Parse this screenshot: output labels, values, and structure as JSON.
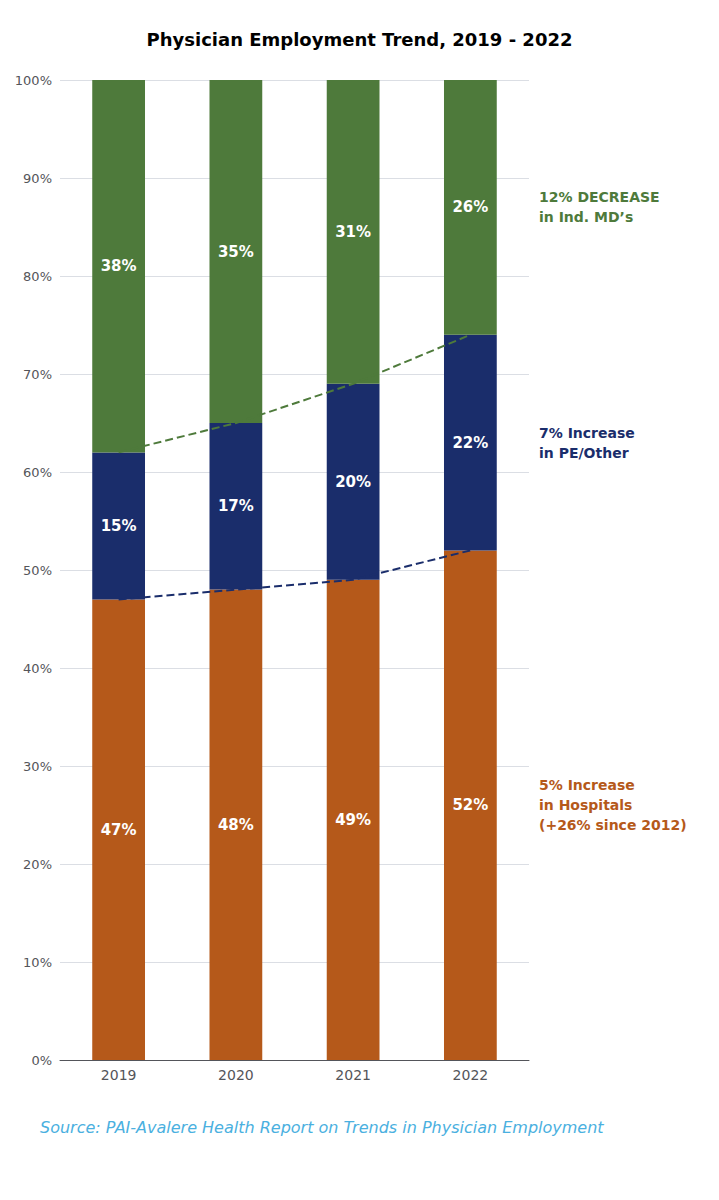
{
  "chart_data": {
    "type": "bar",
    "title": "Physician Employment Trend, 2019 - 2022",
    "stacked": true,
    "grid": true,
    "categories": [
      "2019",
      "2020",
      "2021",
      "2022"
    ],
    "series": [
      {
        "type": "bar",
        "color": "#b5591a",
        "values": [
          47,
          48,
          49,
          52
        ],
        "value_labels": [
          "47%",
          "48%",
          "49%",
          "52%"
        ],
        "data_labels": true
      },
      {
        "type": "bar",
        "color": "#1a2d6b",
        "values": [
          15,
          17,
          20,
          22
        ],
        "value_labels": [
          "15%",
          "17%",
          "20%",
          "22%"
        ],
        "data_labels": true
      },
      {
        "type": "bar",
        "color": "#4e7a3b",
        "values": [
          38,
          35,
          31,
          26
        ],
        "value_labels": [
          "38%",
          "35%",
          "31%",
          "26%"
        ],
        "data_labels": true
      },
      {
        "type": "line",
        "color": "#1a2d6b",
        "values": [
          47,
          48,
          49,
          52
        ],
        "line_style": "dashed",
        "marker": "none"
      },
      {
        "type": "line",
        "color": "#4e7a3b",
        "values": [
          62,
          65,
          69,
          74
        ],
        "line_style": "dashed",
        "marker": "none"
      }
    ],
    "ylim": [
      0,
      100
    ],
    "yticks": [
      {
        "value": 0,
        "label": "0%"
      },
      {
        "value": 10,
        "label": "10%"
      },
      {
        "value": 20,
        "label": "20%"
      },
      {
        "value": 30,
        "label": "30%"
      },
      {
        "value": 40,
        "label": "40%"
      },
      {
        "value": 50,
        "label": "50%"
      },
      {
        "value": 60,
        "label": "60%"
      },
      {
        "value": 70,
        "label": "70%"
      },
      {
        "value": 80,
        "label": "80%"
      },
      {
        "value": 90,
        "label": "90%"
      },
      {
        "value": 100,
        "label": "100%"
      }
    ],
    "annotations": [
      {
        "text": "5% Increase\nin Hospitals\n(+26% since 2012)",
        "color": "#b5591a"
      },
      {
        "text": "7% Increase\nin PE/Other",
        "color": "#1a2d6b"
      },
      {
        "text": "12% DECREASE\nin Ind. MD’s",
        "color": "#4e7a3b"
      },
      {
        "text": "Source: PAI-Avalere Health Report on Trends in Physician Employment",
        "color": "#4ab0e0"
      }
    ]
  }
}
